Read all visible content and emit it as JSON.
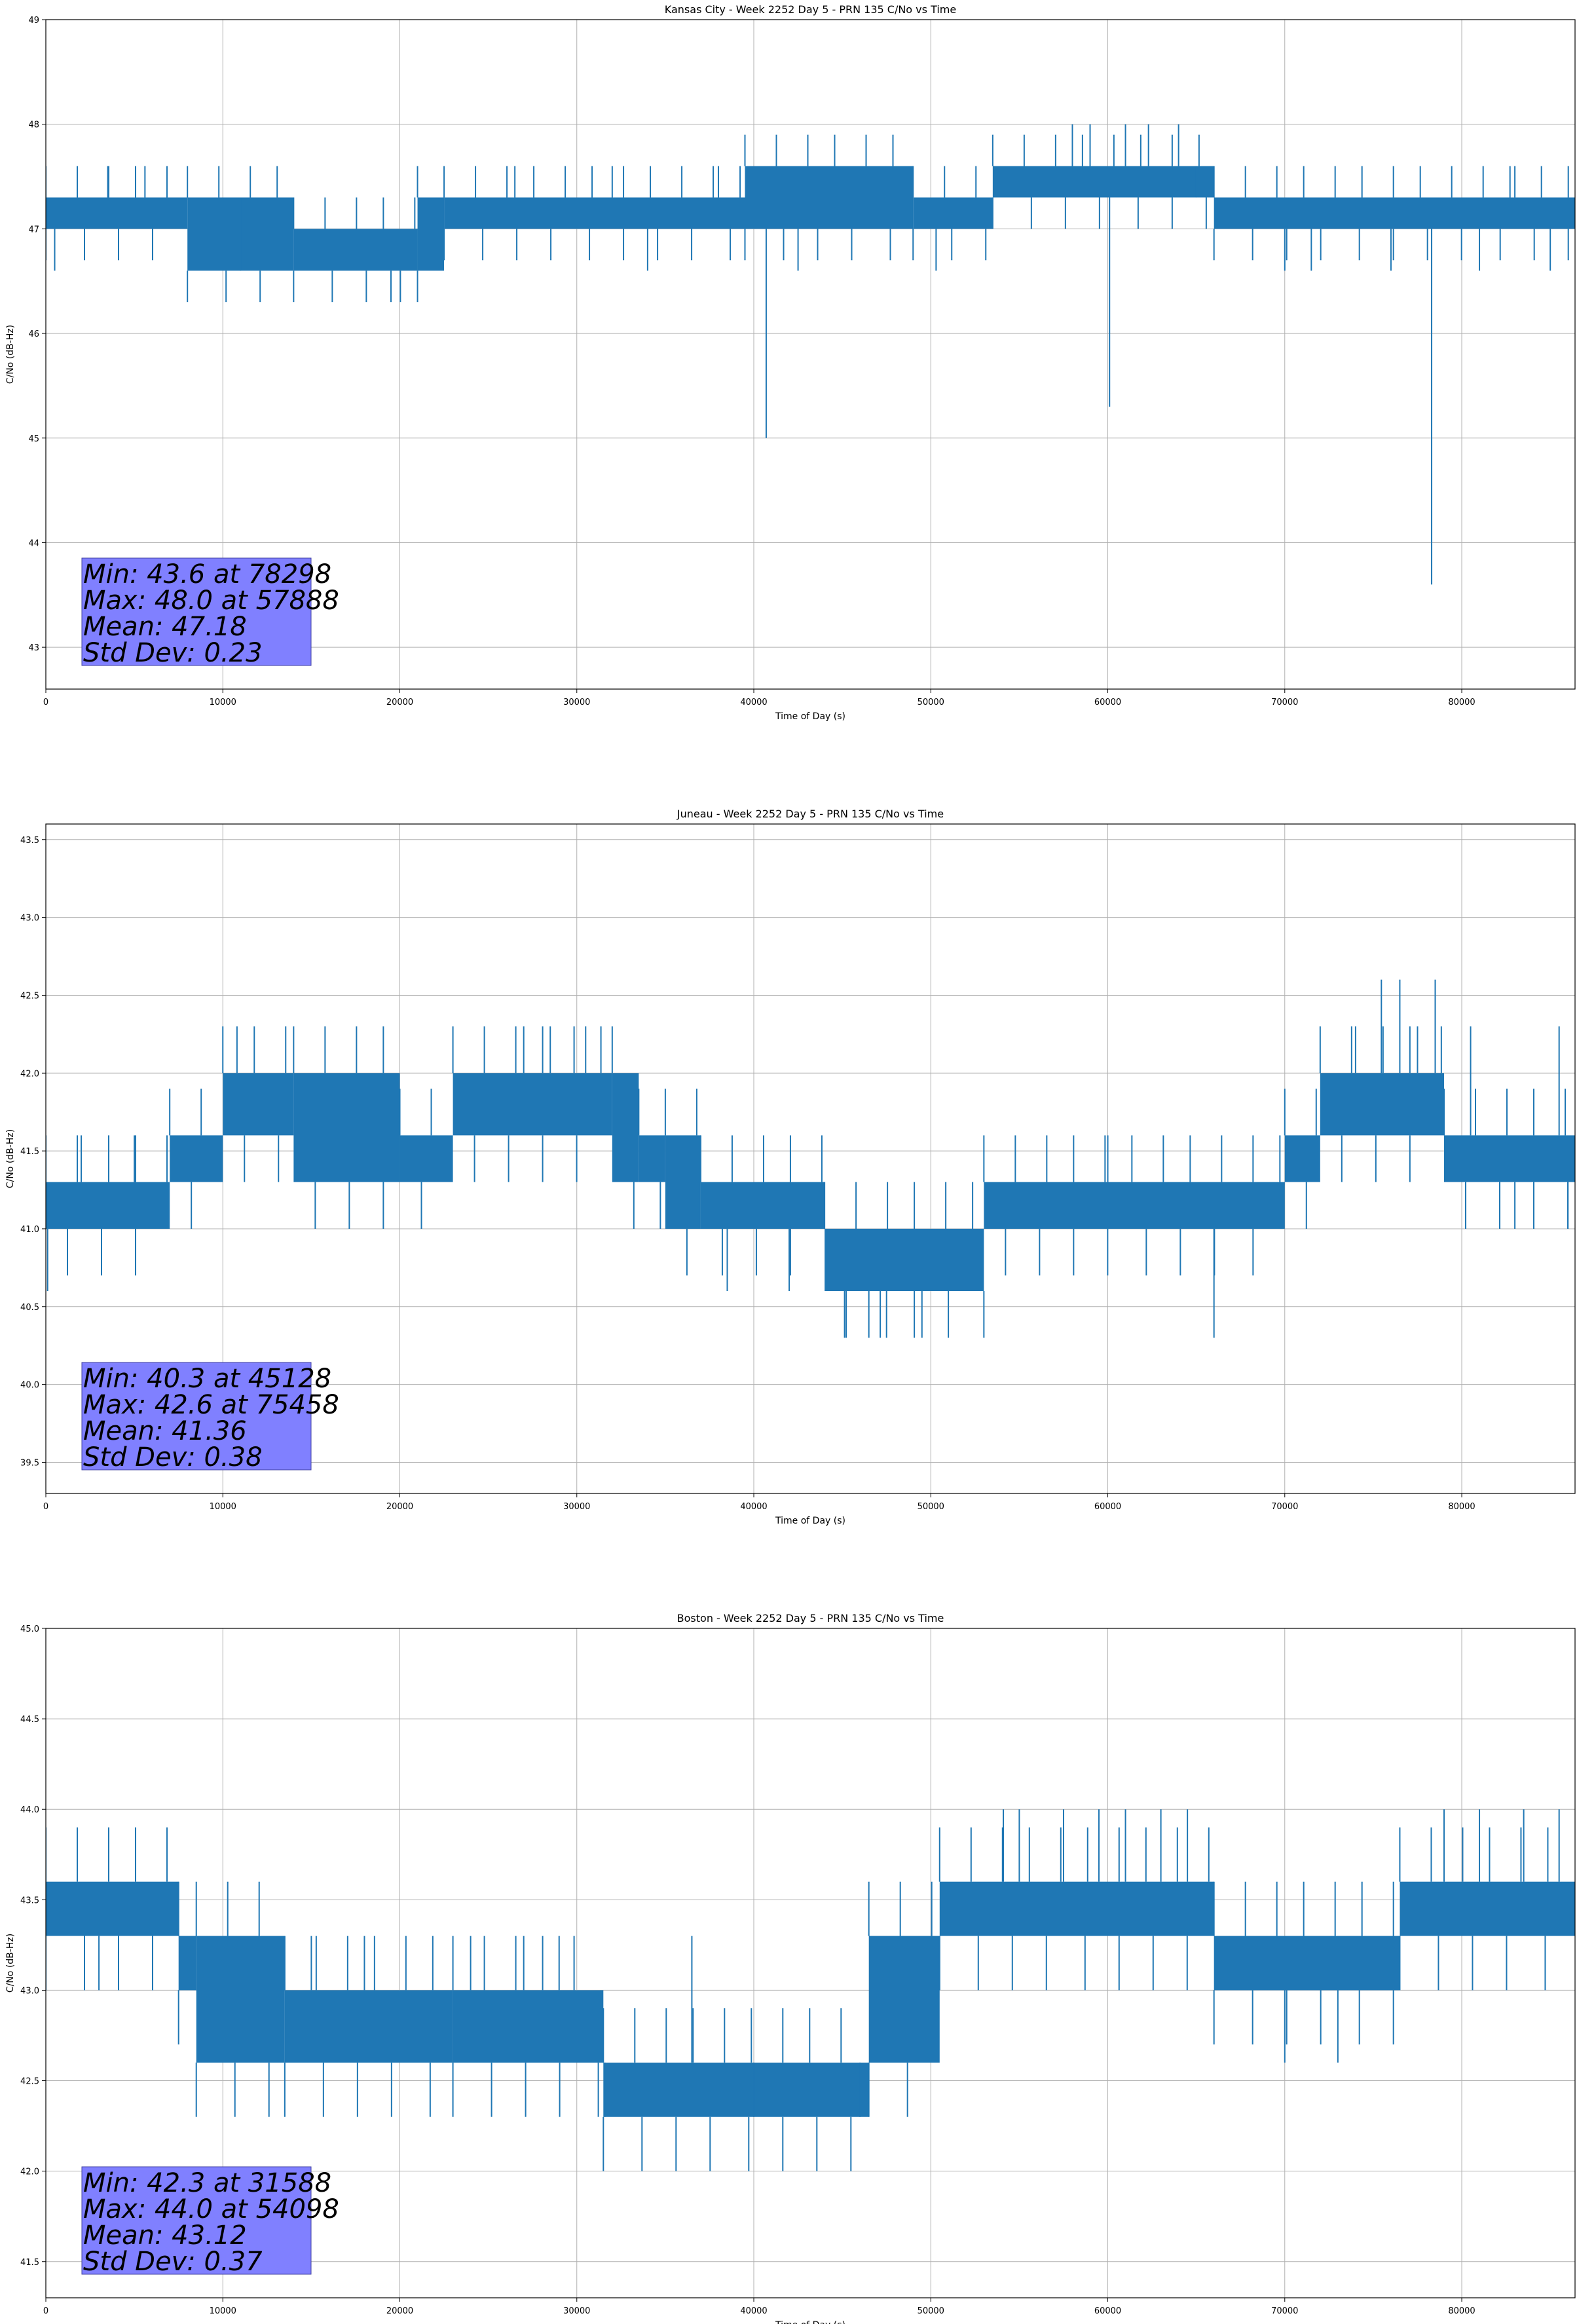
{
  "figure": {
    "background": "#ffffff",
    "series_color": "#1f77b4",
    "stats_box_color": "#8080ff",
    "grid_color": "#b0b0b0"
  },
  "chart_data": [
    {
      "type": "line",
      "title": "Kansas City - Week 2252 Day 5 - PRN 135 C/No vs Time",
      "xlabel": "Time of Day (s)",
      "ylabel": "C/No (dB-Hz)",
      "xlim": [
        0,
        86400
      ],
      "ylim": [
        42.6,
        49
      ],
      "grid": true,
      "x_ticks": [
        0,
        10000,
        20000,
        30000,
        40000,
        50000,
        60000,
        70000,
        80000
      ],
      "x_tick_labels": [
        "0",
        "10000",
        "20000",
        "30000",
        "40000",
        "50000",
        "60000",
        "70000",
        "80000"
      ],
      "y_ticks": [
        43,
        44,
        45,
        46,
        47,
        48,
        49
      ],
      "y_tick_labels": [
        "43",
        "44",
        "45",
        "46",
        "47",
        "48",
        "49"
      ],
      "series": [
        {
          "segments": [
            {
              "x_start": 0,
              "x_end": 8000,
              "low": 47.0,
              "high": 47.3
            },
            {
              "x_start": 8000,
              "x_end": 14000,
              "low": 46.6,
              "high": 47.3
            },
            {
              "x_start": 14000,
              "x_end": 21000,
              "low": 46.6,
              "high": 47.0
            },
            {
              "x_start": 21000,
              "x_end": 22500,
              "low": 46.6,
              "high": 47.3
            },
            {
              "x_start": 22500,
              "x_end": 39500,
              "low": 47.0,
              "high": 47.3
            },
            {
              "x_start": 39500,
              "x_end": 49000,
              "low": 47.0,
              "high": 47.6
            },
            {
              "x_start": 49000,
              "x_end": 53500,
              "low": 47.0,
              "high": 47.3
            },
            {
              "x_start": 53500,
              "x_end": 66000,
              "low": 47.3,
              "high": 47.6
            },
            {
              "x_start": 66000,
              "x_end": 86400,
              "low": 47.0,
              "high": 47.3
            }
          ],
          "spikes": [
            {
              "x": 500,
              "y": 46.6
            },
            {
              "x": 3500,
              "y": 47.6
            },
            {
              "x": 5600,
              "y": 47.6
            },
            {
              "x": 11000,
              "y": 46.6
            },
            {
              "x": 19500,
              "y": 46.3
            },
            {
              "x": 26500,
              "y": 47.6
            },
            {
              "x": 32000,
              "y": 47.6
            },
            {
              "x": 34000,
              "y": 46.6
            },
            {
              "x": 38000,
              "y": 47.6
            },
            {
              "x": 40700,
              "y": 45.0
            },
            {
              "x": 42500,
              "y": 46.6
            },
            {
              "x": 50300,
              "y": 46.6
            },
            {
              "x": 58000,
              "y": 48.0
            },
            {
              "x": 59000,
              "y": 48.0
            },
            {
              "x": 60100,
              "y": 45.3
            },
            {
              "x": 61000,
              "y": 48.0
            },
            {
              "x": 62300,
              "y": 48.0
            },
            {
              "x": 64000,
              "y": 48.0
            },
            {
              "x": 65000,
              "y": 47.3
            },
            {
              "x": 70000,
              "y": 46.6
            },
            {
              "x": 71500,
              "y": 46.6
            },
            {
              "x": 76000,
              "y": 46.6
            },
            {
              "x": 78298,
              "y": 43.6
            },
            {
              "x": 81000,
              "y": 46.6
            },
            {
              "x": 83000,
              "y": 47.6
            },
            {
              "x": 85000,
              "y": 46.6
            }
          ]
        }
      ],
      "stats": [
        "Min: 43.6 at 78298",
        "Max: 48.0 at 57888",
        "Mean: 47.18",
        "Std Dev: 0.23"
      ]
    },
    {
      "type": "line",
      "title": "Juneau - Week 2252 Day 5 - PRN 135 C/No vs Time",
      "xlabel": "Time of Day (s)",
      "ylabel": "C/No (dB-Hz)",
      "xlim": [
        0,
        86400
      ],
      "ylim": [
        39.3,
        43.6
      ],
      "grid": true,
      "x_ticks": [
        0,
        10000,
        20000,
        30000,
        40000,
        50000,
        60000,
        70000,
        80000
      ],
      "x_tick_labels": [
        "0",
        "10000",
        "20000",
        "30000",
        "40000",
        "50000",
        "60000",
        "70000",
        "80000"
      ],
      "y_ticks": [
        39.5,
        40.0,
        40.5,
        41.0,
        41.5,
        42.0,
        42.5,
        43.0,
        43.5
      ],
      "y_tick_labels": [
        "39.5",
        "40.0",
        "40.5",
        "41.0",
        "41.5",
        "42.0",
        "42.5",
        "43.0",
        "43.5"
      ],
      "series": [
        {
          "segments": [
            {
              "x_start": 0,
              "x_end": 7000,
              "low": 41.0,
              "high": 41.3
            },
            {
              "x_start": 7000,
              "x_end": 10000,
              "low": 41.3,
              "high": 41.6
            },
            {
              "x_start": 10000,
              "x_end": 14000,
              "low": 41.6,
              "high": 42.0
            },
            {
              "x_start": 14000,
              "x_end": 20000,
              "low": 41.3,
              "high": 42.0
            },
            {
              "x_start": 20000,
              "x_end": 23000,
              "low": 41.3,
              "high": 41.6
            },
            {
              "x_start": 23000,
              "x_end": 32000,
              "low": 41.6,
              "high": 42.0
            },
            {
              "x_start": 32000,
              "x_end": 33500,
              "low": 41.3,
              "high": 42.0
            },
            {
              "x_start": 33500,
              "x_end": 35000,
              "low": 41.3,
              "high": 41.6
            },
            {
              "x_start": 35000,
              "x_end": 37000,
              "low": 41.0,
              "high": 41.6
            },
            {
              "x_start": 37000,
              "x_end": 44000,
              "low": 41.0,
              "high": 41.3
            },
            {
              "x_start": 44000,
              "x_end": 53000,
              "low": 40.6,
              "high": 41.0
            },
            {
              "x_start": 53000,
              "x_end": 70000,
              "low": 41.0,
              "high": 41.3
            },
            {
              "x_start": 70000,
              "x_end": 72000,
              "low": 41.3,
              "high": 41.6
            },
            {
              "x_start": 72000,
              "x_end": 79000,
              "low": 41.6,
              "high": 42.0
            },
            {
              "x_start": 79000,
              "x_end": 86400,
              "low": 41.3,
              "high": 41.6
            }
          ],
          "spikes": [
            {
              "x": 100,
              "y": 40.6
            },
            {
              "x": 2000,
              "y": 41.6
            },
            {
              "x": 5000,
              "y": 41.6
            },
            {
              "x": 10800,
              "y": 42.3
            },
            {
              "x": 27000,
              "y": 42.3
            },
            {
              "x": 28500,
              "y": 42.3
            },
            {
              "x": 30500,
              "y": 42.3
            },
            {
              "x": 38500,
              "y": 40.6
            },
            {
              "x": 42000,
              "y": 40.6
            },
            {
              "x": 45128,
              "y": 40.3
            },
            {
              "x": 46500,
              "y": 40.3
            },
            {
              "x": 47500,
              "y": 40.3
            },
            {
              "x": 49500,
              "y": 40.3
            },
            {
              "x": 53000,
              "y": 40.3
            },
            {
              "x": 60000,
              "y": 41.6
            },
            {
              "x": 66000,
              "y": 40.3
            },
            {
              "x": 74000,
              "y": 42.3
            },
            {
              "x": 75458,
              "y": 42.6
            },
            {
              "x": 76500,
              "y": 42.6
            },
            {
              "x": 77500,
              "y": 42.3
            },
            {
              "x": 78500,
              "y": 42.6
            },
            {
              "x": 80500,
              "y": 42.3
            },
            {
              "x": 83000,
              "y": 41.0
            },
            {
              "x": 85500,
              "y": 42.3
            },
            {
              "x": 86000,
              "y": 41.0
            }
          ]
        }
      ],
      "stats": [
        "Min: 40.3 at 45128",
        "Max: 42.6 at 75458",
        "Mean: 41.36",
        "Std Dev: 0.38"
      ]
    },
    {
      "type": "line",
      "title": "Boston - Week 2252 Day 5 - PRN 135 C/No vs Time",
      "xlabel": "Time of Day (s)",
      "ylabel": "C/No (dB-Hz)",
      "xlim": [
        0,
        86400
      ],
      "ylim": [
        41.3,
        45
      ],
      "grid": true,
      "x_ticks": [
        0,
        10000,
        20000,
        30000,
        40000,
        50000,
        60000,
        70000,
        80000
      ],
      "x_tick_labels": [
        "0",
        "10000",
        "20000",
        "30000",
        "40000",
        "50000",
        "60000",
        "70000",
        "80000"
      ],
      "y_ticks": [
        41.5,
        42.0,
        42.5,
        43.0,
        43.5,
        44.0,
        44.5,
        45.0
      ],
      "y_tick_labels": [
        "41.5",
        "42.0",
        "42.5",
        "43.0",
        "43.5",
        "44.0",
        "44.5",
        "45.0"
      ],
      "series": [
        {
          "segments": [
            {
              "x_start": 0,
              "x_end": 7500,
              "low": 43.3,
              "high": 43.6
            },
            {
              "x_start": 7500,
              "x_end": 8500,
              "low": 43.0,
              "high": 43.3
            },
            {
              "x_start": 8500,
              "x_end": 13500,
              "low": 42.6,
              "high": 43.3
            },
            {
              "x_start": 13500,
              "x_end": 23000,
              "low": 42.6,
              "high": 43.0
            },
            {
              "x_start": 23000,
              "x_end": 31500,
              "low": 42.6,
              "high": 43.0
            },
            {
              "x_start": 31500,
              "x_end": 46500,
              "low": 42.3,
              "high": 42.6
            },
            {
              "x_start": 46500,
              "x_end": 50500,
              "low": 42.6,
              "high": 43.3
            },
            {
              "x_start": 50500,
              "x_end": 66000,
              "low": 43.3,
              "high": 43.6
            },
            {
              "x_start": 66000,
              "x_end": 76500,
              "low": 43.0,
              "high": 43.3
            },
            {
              "x_start": 76500,
              "x_end": 86400,
              "low": 43.3,
              "high": 43.6
            }
          ],
          "spikes": [
            {
              "x": 3000,
              "y": 43.0
            },
            {
              "x": 10000,
              "y": 43.3
            },
            {
              "x": 15000,
              "y": 43.3
            },
            {
              "x": 18000,
              "y": 43.3
            },
            {
              "x": 24000,
              "y": 43.3
            },
            {
              "x": 27000,
              "y": 43.3
            },
            {
              "x": 29000,
              "y": 43.3
            },
            {
              "x": 31588,
              "y": 42.3
            },
            {
              "x": 36500,
              "y": 43.3
            },
            {
              "x": 40000,
              "y": 42.3
            },
            {
              "x": 46000,
              "y": 42.3
            },
            {
              "x": 54098,
              "y": 44.0
            },
            {
              "x": 55000,
              "y": 44.0
            },
            {
              "x": 57500,
              "y": 44.0
            },
            {
              "x": 59500,
              "y": 44.0
            },
            {
              "x": 61000,
              "y": 44.0
            },
            {
              "x": 63000,
              "y": 44.0
            },
            {
              "x": 64500,
              "y": 44.0
            },
            {
              "x": 70000,
              "y": 42.6
            },
            {
              "x": 73000,
              "y": 42.6
            },
            {
              "x": 79000,
              "y": 44.0
            },
            {
              "x": 81000,
              "y": 44.0
            },
            {
              "x": 83500,
              "y": 44.0
            },
            {
              "x": 85500,
              "y": 44.0
            }
          ]
        }
      ],
      "stats": [
        "Min: 42.3 at 31588",
        "Max: 44.0 at 54098",
        "Mean: 43.12",
        "Std Dev: 0.37"
      ]
    }
  ]
}
